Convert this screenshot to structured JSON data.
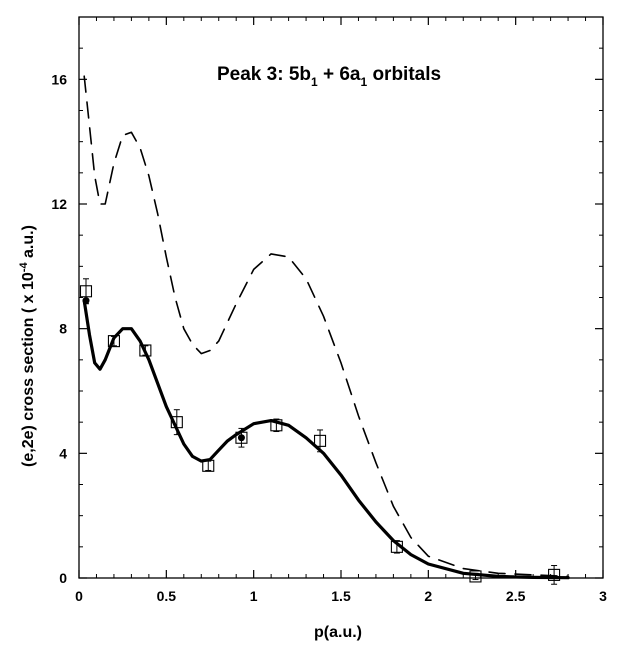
{
  "chart_data": {
    "type": "line",
    "title": {
      "prefix": "Peak 3: 5b",
      "sub1": "1",
      "middle": " + 6a",
      "sub2": "1",
      "suffix": " orbitals"
    },
    "xlabel": "p(a.u.)",
    "ylabel": {
      "prefix": "(e,2e) cross section ( x 10",
      "exponent": "-4",
      "suffix": " a.u.)"
    },
    "xlim": [
      0,
      3
    ],
    "ylim": [
      0,
      18
    ],
    "x_ticks": [
      "0",
      "0.5",
      "1",
      "1.5",
      "2",
      "2.5",
      "3"
    ],
    "y_ticks": [
      "0",
      "4",
      "8",
      "12",
      "16"
    ],
    "grid": false,
    "series": [
      {
        "style": "dashed",
        "x": [
          0.03,
          0.06,
          0.09,
          0.12,
          0.15,
          0.2,
          0.25,
          0.3,
          0.35,
          0.4,
          0.45,
          0.5,
          0.55,
          0.6,
          0.65,
          0.7,
          0.75,
          0.8,
          0.9,
          1.0,
          1.1,
          1.2,
          1.3,
          1.4,
          1.5,
          1.6,
          1.7,
          1.8,
          1.9,
          2.0,
          2.2,
          2.4,
          2.6,
          2.8
        ],
        "y": [
          16.1,
          14.5,
          12.9,
          12.0,
          12.0,
          13.3,
          14.2,
          14.3,
          13.8,
          12.9,
          11.7,
          10.3,
          9.0,
          8.0,
          7.5,
          7.2,
          7.3,
          7.6,
          8.8,
          9.9,
          10.4,
          10.3,
          9.6,
          8.4,
          6.9,
          5.2,
          3.7,
          2.3,
          1.3,
          0.7,
          0.3,
          0.15,
          0.1,
          0.05
        ]
      },
      {
        "style": "solid",
        "x": [
          0.03,
          0.06,
          0.09,
          0.12,
          0.15,
          0.2,
          0.25,
          0.3,
          0.35,
          0.4,
          0.5,
          0.6,
          0.65,
          0.7,
          0.75,
          0.8,
          0.85,
          0.9,
          1.0,
          1.1,
          1.2,
          1.3,
          1.4,
          1.5,
          1.6,
          1.7,
          1.8,
          1.9,
          2.0,
          2.2,
          2.4,
          2.6,
          2.8
        ],
        "y": [
          8.9,
          7.8,
          6.9,
          6.7,
          7.0,
          7.7,
          8.0,
          8.0,
          7.6,
          7.0,
          5.5,
          4.3,
          3.9,
          3.75,
          3.8,
          4.1,
          4.4,
          4.6,
          4.95,
          5.05,
          4.9,
          4.5,
          4.0,
          3.3,
          2.5,
          1.8,
          1.2,
          0.75,
          0.45,
          0.15,
          0.05,
          0.02,
          0.01
        ]
      },
      {
        "style": "markers",
        "marker": "open-square",
        "x": [
          0.04,
          0.2,
          0.38,
          0.56,
          0.74,
          0.93,
          1.13,
          1.38,
          1.82,
          2.27,
          2.72
        ],
        "y": [
          9.2,
          7.6,
          7.3,
          5.0,
          3.6,
          4.5,
          4.9,
          4.4,
          1.0,
          0.05,
          0.1
        ],
        "err": [
          0.4,
          0.15,
          0.15,
          0.4,
          0.15,
          0.3,
          0.2,
          0.35,
          0.2,
          0.1,
          0.3
        ]
      },
      {
        "style": "markers",
        "marker": "filled-circle",
        "x": [
          0.04,
          0.93
        ],
        "y": [
          8.9,
          4.5
        ]
      }
    ]
  }
}
